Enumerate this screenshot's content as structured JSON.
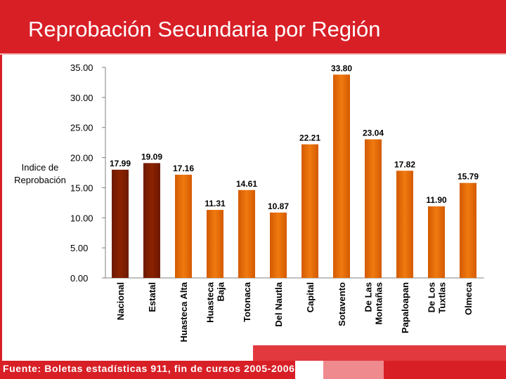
{
  "header": {
    "title": "Reprobación Secundaria por Región"
  },
  "footer": {
    "source": "Fuente: Boletas estadísticas 911, fin de cursos 2005-2006"
  },
  "colors": {
    "brand_red": "#d81f26",
    "bar_dark": "#8a2200",
    "bar_orange": "#f07a10"
  },
  "chart_data": {
    "type": "bar",
    "ylabel": "Indice de Reprobación",
    "ylim": [
      0,
      35
    ],
    "yticks": [
      "0.00",
      "5.00",
      "10.00",
      "15.00",
      "20.00",
      "25.00",
      "30.00",
      "35.00"
    ],
    "grid": false,
    "categories": [
      "Nacional",
      "Estatal",
      "Huasteca Alta",
      "Huasteca Baja",
      "Totonaca",
      "Del Nautla",
      "Capital",
      "Sotavento",
      "De Las Montañas",
      "Papaloapan",
      "De Los Tuxtlas",
      "Olmeca"
    ],
    "category_lines": [
      [
        "Nacional"
      ],
      [
        "Estatal"
      ],
      [
        "Huasteca Alta"
      ],
      [
        "Huasteca",
        "Baja"
      ],
      [
        "Totonaca"
      ],
      [
        "Del Nautla"
      ],
      [
        "Capital"
      ],
      [
        "Sotavento"
      ],
      [
        "De Las",
        "Montañas"
      ],
      [
        "Papaloapan"
      ],
      [
        "De Los",
        "Tuxtlas"
      ],
      [
        "Olmeca"
      ]
    ],
    "values": [
      17.99,
      19.09,
      17.16,
      11.31,
      14.61,
      10.87,
      22.21,
      33.8,
      23.04,
      17.82,
      11.9,
      15.79
    ],
    "value_labels": [
      "17.99",
      "19.09",
      "17.16",
      "11.31",
      "14.61",
      "10.87",
      "22.21",
      "33.80",
      "23.04",
      "17.82",
      "11.90",
      "15.79"
    ]
  }
}
